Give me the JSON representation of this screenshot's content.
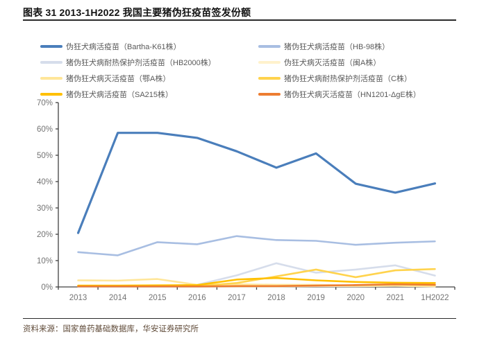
{
  "page": {
    "title": "图表  31 2013-1H2022 我国主要猪伪狂疫苗签发份额",
    "source": "资料来源：国家兽药基础数据库，华安证券研究所"
  },
  "colors": {
    "axis": "#404040",
    "tick_label": "#737373",
    "title_text": "#111111",
    "source_text": "#5f4a38",
    "rule": "#2a2a2a"
  },
  "chart_data": {
    "type": "line",
    "title": "图表 31 2013-1H2022 我国主要猪伪狂疫苗签发份额",
    "xlabel": "",
    "ylabel": "",
    "ylim": [
      0,
      70
    ],
    "yticks": [
      0,
      10,
      20,
      30,
      40,
      50,
      60,
      70
    ],
    "ytick_suffix": "%",
    "grid": false,
    "legend_position": "top",
    "categories": [
      "2013",
      "2014",
      "2015",
      "2016",
      "2017",
      "2018",
      "2019",
      "2020",
      "2021",
      "1H2022"
    ],
    "series": [
      {
        "name": "伪狂犬病活疫苗（Bartha-K61株）",
        "color": "#4a7ebb",
        "line_width": 3.2,
        "values": [
          20.5,
          58.5,
          58.5,
          56.6,
          51.5,
          45.3,
          50.7,
          39.2,
          35.8,
          39.3
        ]
      },
      {
        "name": "猪伪狂犬病活疫苗（HB-98株）",
        "color": "#a8bee2",
        "line_width": 2.6,
        "values": [
          13.2,
          12.0,
          17.0,
          16.2,
          19.3,
          17.8,
          17.5,
          16.0,
          16.8,
          17.3
        ]
      },
      {
        "name": "猪伪狂犬病耐热保护剂活疫苗（HB2000株）",
        "color": "#d6ddeb",
        "line_width": 2.6,
        "values": [
          0.3,
          0.3,
          0.5,
          0.8,
          4.4,
          9.0,
          5.4,
          6.6,
          8.2,
          4.3
        ]
      },
      {
        "name": "伪狂犬病灭活疫苗（闽A株）",
        "color": "#fff2cc",
        "line_width": 2.6,
        "values": [
          0.3,
          0.3,
          0.3,
          0.2,
          0.2,
          0.2,
          0.3,
          0.3,
          0.4,
          0.2
        ]
      },
      {
        "name": "猪伪狂犬病灭活疫苗（鄂A株）",
        "color": "#ffe699",
        "line_width": 2.6,
        "values": [
          2.5,
          2.4,
          3.0,
          0.8,
          1.0,
          0.8,
          0.8,
          0.5,
          0.5,
          0.3
        ]
      },
      {
        "name": "猪伪狂犬病耐热保护剂活疫苗（C株）",
        "color": "#ffd34d",
        "line_width": 2.6,
        "values": [
          0.2,
          0.2,
          0.2,
          0.3,
          1.5,
          4.0,
          6.6,
          3.7,
          6.3,
          6.8
        ]
      },
      {
        "name": "猪伪狂犬病活疫苗（SA215株）",
        "color": "#ffc000",
        "line_width": 2.6,
        "values": [
          0.5,
          0.5,
          0.6,
          0.7,
          2.8,
          3.4,
          2.5,
          1.9,
          1.6,
          1.5
        ]
      },
      {
        "name": "猪伪狂犬病灭活疫苗（HN1201-ΔgE株）",
        "color": "#ed7d31",
        "line_width": 2.6,
        "values": [
          0.2,
          0.2,
          0.2,
          0.2,
          0.3,
          0.3,
          0.5,
          0.7,
          1.0,
          0.8
        ]
      }
    ]
  },
  "legend": {
    "order": [
      0,
      2,
      4,
      6,
      1,
      3,
      5,
      7
    ]
  }
}
